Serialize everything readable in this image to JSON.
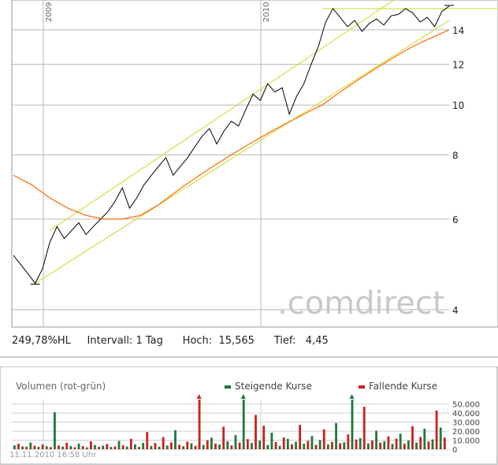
{
  "stats": {
    "perf": "249,78%HL",
    "interval_label": "Intervall:",
    "interval_value": "1 Tag",
    "high_label": "Hoch:",
    "high_value": "15,565",
    "low_label": "Tief:",
    "low_value": "4,45"
  },
  "watermark": ".comdirect",
  "volume_panel": {
    "title": "Volumen (rot-grün)",
    "legend_up": "Steigende Kurse",
    "legend_down": "Fallende Kurse",
    "up_color": "#1a7a3a",
    "down_color": "#cc1f1f"
  },
  "timestamp": "11.11.2010 16:58 Uhr",
  "colors": {
    "price_line": "#000000",
    "moving_average": "#ff6a00",
    "channel": "#ccdd22",
    "grid": "#b8b8b8"
  },
  "chart_data": [
    {
      "type": "line",
      "scale": "log",
      "x_axis_labels": [
        "2009",
        "2010"
      ],
      "y_ticks": [
        4,
        6,
        8,
        10,
        12,
        14
      ],
      "ylim": [
        3.7,
        16
      ],
      "grid": true,
      "series": [
        {
          "values": [
            5.1,
            4.9,
            4.7,
            4.5,
            4.8,
            5.4,
            5.8,
            5.5,
            5.7,
            5.9,
            5.6,
            5.8,
            6.0,
            6.2,
            6.5,
            6.9,
            6.3,
            6.6,
            7.0,
            7.3,
            7.6,
            7.9,
            7.3,
            7.6,
            7.9,
            8.3,
            8.7,
            9.0,
            8.4,
            8.9,
            9.3,
            9.1,
            9.8,
            10.5,
            10.2,
            11.0,
            10.6,
            10.8,
            9.6,
            10.4,
            11.0,
            12.0,
            13.0,
            14.5,
            15.4,
            14.8,
            14.2,
            14.6,
            13.9,
            14.4,
            14.7,
            14.3,
            14.9,
            15.0,
            15.4,
            15.1,
            14.5,
            14.8,
            14.2,
            15.2,
            15.56
          ]
        },
        {
          "values": [
            7.3,
            7.0,
            6.6,
            6.3,
            6.1,
            6.0,
            6.0,
            6.1,
            6.4,
            6.8,
            7.2,
            7.6,
            8.0,
            8.4,
            8.8,
            9.2,
            9.6,
            10.0,
            10.6,
            11.2,
            11.8,
            12.4,
            13.0,
            13.5,
            14.0
          ]
        }
      ],
      "annotations": [
        "15,565",
        "4,45"
      ]
    },
    {
      "type": "bar",
      "title": "Volumen (rot-grün)",
      "series": [
        {
          "name": "Steigende Kurse"
        },
        {
          "name": "Fallende Kurse"
        }
      ],
      "y_ticks": [
        0,
        10000,
        20000,
        30000,
        40000,
        50000
      ],
      "y_tick_labels": [
        "0",
        "10.000",
        "20.000",
        "30.000",
        "40.000",
        "50.000"
      ],
      "ylim": [
        0,
        55000
      ],
      "values": [
        [
          4200,
          0
        ],
        [
          0,
          6100
        ],
        [
          3100,
          0
        ],
        [
          0,
          2800
        ],
        [
          7400,
          0
        ],
        [
          0,
          3900
        ],
        [
          2600,
          0
        ],
        [
          0,
          5200
        ],
        [
          3300,
          0
        ],
        [
          0,
          2400
        ],
        [
          41000,
          0
        ],
        [
          0,
          4100
        ],
        [
          2900,
          0
        ],
        [
          0,
          7200
        ],
        [
          3500,
          0
        ],
        [
          0,
          2200
        ],
        [
          6200,
          0
        ],
        [
          0,
          3400
        ],
        [
          2100,
          0
        ],
        [
          0,
          8800
        ],
        [
          4600,
          0
        ],
        [
          0,
          2700
        ],
        [
          3900,
          0
        ],
        [
          0,
          5800
        ],
        [
          2500,
          0
        ],
        [
          0,
          3100
        ],
        [
          9200,
          0
        ],
        [
          0,
          4400
        ],
        [
          3000,
          0
        ],
        [
          0,
          11500
        ],
        [
          5400,
          0
        ],
        [
          0,
          2600
        ],
        [
          7100,
          0
        ],
        [
          0,
          19000
        ],
        [
          3600,
          0
        ],
        [
          0,
          6800
        ],
        [
          2800,
          0
        ],
        [
          0,
          13500
        ],
        [
          4100,
          0
        ],
        [
          0,
          7600
        ],
        [
          21000,
          0
        ],
        [
          0,
          5000
        ],
        [
          3300,
          0
        ],
        [
          0,
          8400
        ],
        [
          6500,
          0
        ],
        [
          0,
          3700
        ],
        [
          0,
          57000
        ],
        [
          4800,
          0
        ],
        [
          0,
          9900
        ],
        [
          12800,
          0
        ],
        [
          0,
          6300
        ],
        [
          5200,
          0
        ],
        [
          0,
          25000
        ],
        [
          8700,
          0
        ],
        [
          0,
          4300
        ],
        [
          15600,
          0
        ],
        [
          0,
          7400
        ],
        [
          57000,
          0
        ],
        [
          0,
          11200
        ],
        [
          6900,
          0
        ],
        [
          0,
          38000
        ],
        [
          9500,
          0
        ],
        [
          0,
          26000
        ],
        [
          4700,
          0
        ],
        [
          18300,
          0
        ],
        [
          0,
          7900
        ],
        [
          3800,
          0
        ],
        [
          0,
          13000
        ],
        [
          11400,
          0
        ],
        [
          0,
          5600
        ],
        [
          8300,
          0
        ],
        [
          0,
          27000
        ],
        [
          6100,
          0
        ],
        [
          0,
          9300
        ],
        [
          14700,
          0
        ],
        [
          0,
          4900
        ],
        [
          10200,
          0
        ],
        [
          0,
          22000
        ],
        [
          5300,
          0
        ],
        [
          0,
          8100
        ],
        [
          29000,
          0
        ],
        [
          0,
          6700
        ],
        [
          7700,
          0
        ],
        [
          0,
          16400
        ],
        [
          57000,
          0
        ],
        [
          0,
          10800
        ],
        [
          12300,
          0
        ],
        [
          0,
          47000
        ],
        [
          6400,
          0
        ],
        [
          0,
          9600
        ],
        [
          20500,
          0
        ],
        [
          0,
          7300
        ],
        [
          8900,
          0
        ],
        [
          0,
          14200
        ],
        [
          5900,
          0
        ],
        [
          0,
          11700
        ],
        [
          17200,
          0
        ],
        [
          0,
          6200
        ],
        [
          9700,
          0
        ],
        [
          0,
          25500
        ],
        [
          7300,
          0
        ],
        [
          0,
          13600
        ],
        [
          22800,
          0
        ],
        [
          0,
          8600
        ],
        [
          10900,
          0
        ],
        [
          0,
          43000
        ],
        [
          24000,
          0
        ],
        [
          0,
          12900
        ]
      ]
    }
  ]
}
